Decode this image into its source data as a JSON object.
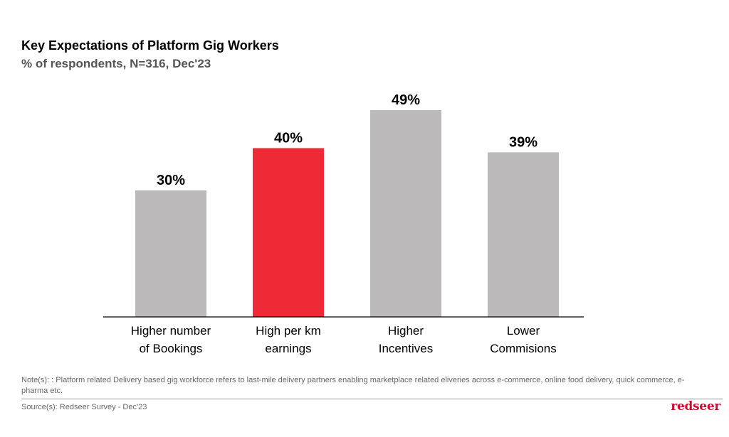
{
  "chart_data": {
    "type": "bar",
    "title": "Key Expectations of Platform Gig Workers",
    "subtitle": "% of respondents, N=316,  Dec'23",
    "categories": [
      [
        "Higher number",
        "of Bookings"
      ],
      [
        "High per km",
        "earnings"
      ],
      [
        "Higher",
        "Incentives"
      ],
      [
        "Lower",
        "Commisions"
      ]
    ],
    "values": [
      30,
      40,
      49,
      39
    ],
    "data_labels": [
      "30%",
      "40%",
      "49%",
      "39%"
    ],
    "highlight_index": 1,
    "colors": {
      "default": "#bcb9ba",
      "highlight": "#ed2a36"
    },
    "ylim": [
      0,
      49
    ],
    "grid": false,
    "legend": "none"
  },
  "note": "Note(s): : Platform related Delivery based gig workforce refers to last-mile delivery partners enabling marketplace related eliveries across e-commerce, online food delivery, quick commerce, e-pharma etc.",
  "source": "Source(s):  Redseer Survey - Dec'23",
  "logo_text": "redseer"
}
